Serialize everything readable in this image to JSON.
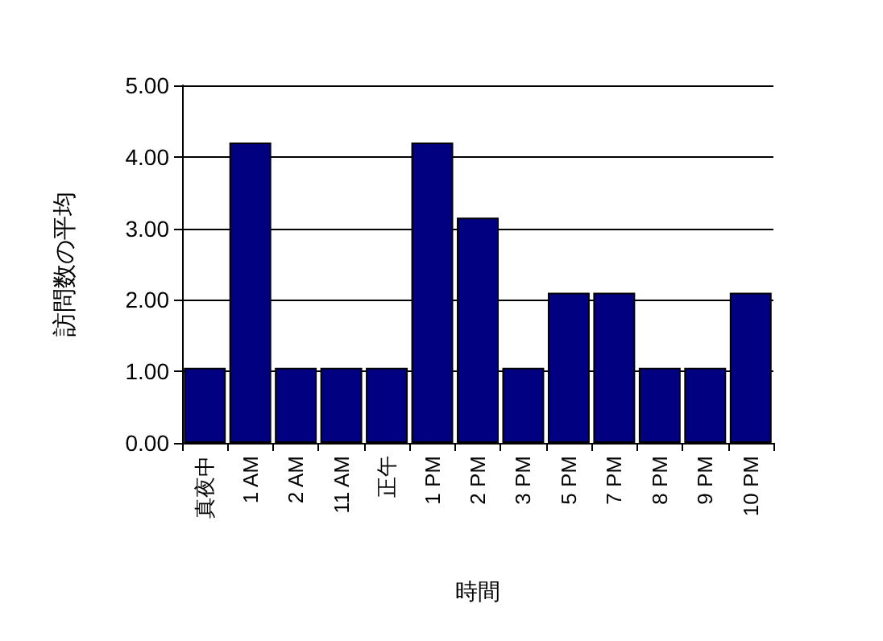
{
  "chart_data": {
    "type": "bar",
    "xlabel": "時間",
    "ylabel": "訪問数の平均",
    "categories": [
      "真夜中",
      "1 AM",
      "2 AM",
      "11 AM",
      "正午",
      "1 PM",
      "2 PM",
      "3 PM",
      "5 PM",
      "7 PM",
      "8 PM",
      "9 PM",
      "10 PM"
    ],
    "values": [
      1.05,
      4.2,
      1.05,
      1.05,
      1.05,
      4.2,
      3.15,
      1.05,
      2.1,
      2.1,
      1.05,
      1.05,
      2.1
    ],
    "color": "#000080",
    "ylim": [
      0,
      5
    ],
    "yticks": [
      {
        "value": 0,
        "label": "0.00"
      },
      {
        "value": 1,
        "label": "1.00"
      },
      {
        "value": 2,
        "label": "2.00"
      },
      {
        "value": 3,
        "label": "3.00"
      },
      {
        "value": 4,
        "label": "4.00"
      },
      {
        "value": 5,
        "label": "5.00"
      }
    ],
    "grid": "y"
  }
}
